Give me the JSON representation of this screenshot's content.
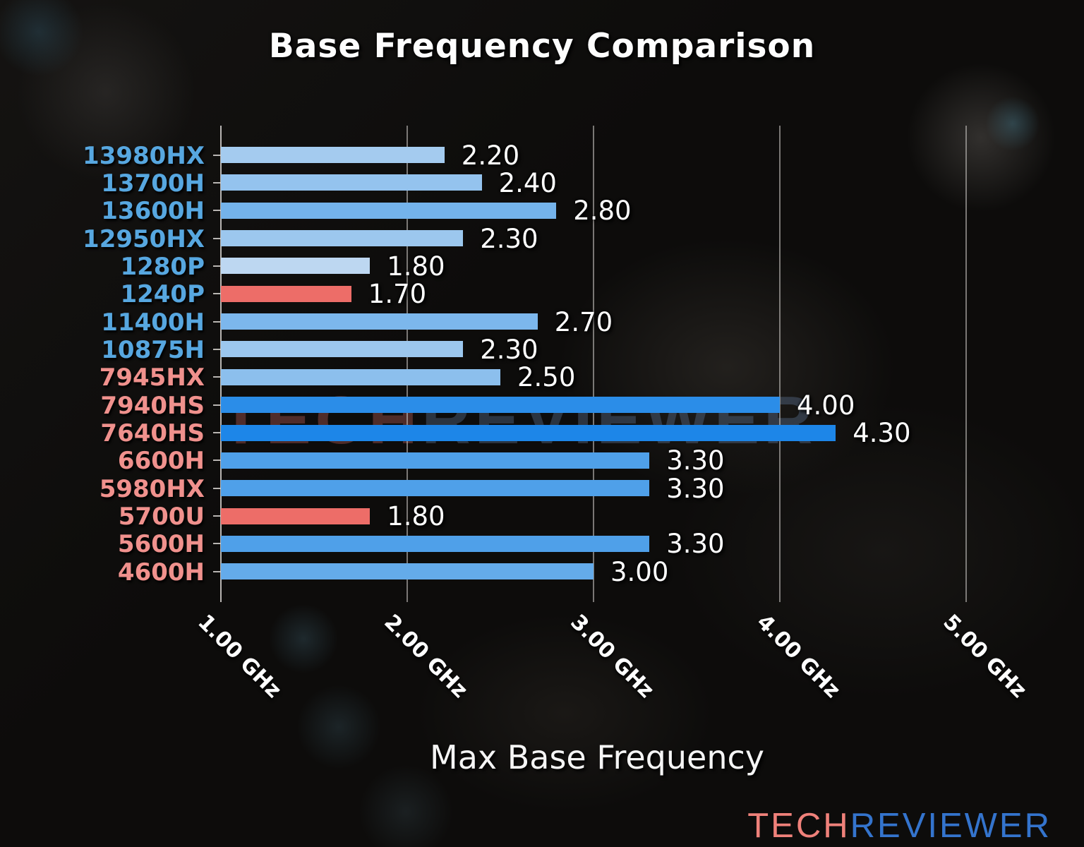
{
  "title": "Base Frequency Comparison",
  "watermark": {
    "tech": "TECH",
    "reviewer": "REVIEWER"
  },
  "logo": {
    "tech": "TECH",
    "reviewer": "REVIEWER"
  },
  "colors": {
    "background": "#0d0c0b",
    "title_text": "#fdfdfd",
    "value_label_text": "#ffffff",
    "tick_label_text": "#ffffff",
    "axis_label_text": "#f5f5f5",
    "grid_line": "rgba(195,192,188,0.60)",
    "axis_spine": "rgba(215,212,208,0.85)",
    "intel_label": "#57a7e0",
    "amd_label": "#f0918d",
    "highlight_bar": "#ed6d68",
    "logo_tech": "#ef817a",
    "logo_reviewer": "#3474cd",
    "watermark_tech": "rgba(180,92,88,0.40)",
    "watermark_reviewer": "rgba(108,138,178,0.32)"
  },
  "chart_data": {
    "type": "bar",
    "orientation": "horizontal",
    "title": "Base Frequency Comparison",
    "xlabel": "Max Base Frequency",
    "x_unit": "GHz",
    "xlim": [
      1.0,
      5.65
    ],
    "grid": "vertical gridlines at each labeled tick",
    "legend": "none",
    "x_ticks": [
      "1.00 GHz",
      "2.00 GHz",
      "3.00 GHz",
      "4.00 GHz",
      "5.00 GHz"
    ],
    "x_tick_values": [
      1.0,
      2.0,
      3.0,
      4.0,
      5.0
    ],
    "categories": [
      "13980HX",
      "13700H",
      "13600H",
      "12950HX",
      "1280P",
      "1240P",
      "11400H",
      "10875H",
      "7945HX",
      "7940HS",
      "7640HS",
      "6600H",
      "5980HX",
      "5700U",
      "5600H",
      "4600H"
    ],
    "values": [
      2.2,
      2.4,
      2.8,
      2.3,
      1.8,
      1.7,
      2.7,
      2.3,
      2.5,
      4.0,
      4.3,
      3.3,
      3.3,
      1.8,
      3.3,
      3.0
    ],
    "value_labels": [
      "2.20",
      "2.40",
      "2.80",
      "2.30",
      "1.80",
      "1.70",
      "2.70",
      "2.30",
      "2.50",
      "4.00",
      "4.30",
      "3.30",
      "3.30",
      "1.80",
      "3.30",
      "3.00"
    ],
    "bar_colors": [
      "#a4cbef",
      "#94c3ee",
      "#74b3eb",
      "#9cc7ee",
      "#bdd7f1",
      "#ed6d68",
      "#7cb7ec",
      "#9cc7ee",
      "#8cbfed",
      "#2b8de8",
      "#1d86e8",
      "#4fa0e9",
      "#4fa0e9",
      "#ed6d68",
      "#4fa0e9",
      "#64abea"
    ],
    "label_colors": [
      "#57a7e0",
      "#57a7e0",
      "#57a7e0",
      "#57a7e0",
      "#57a7e0",
      "#57a7e0",
      "#57a7e0",
      "#57a7e0",
      "#f0918d",
      "#f0918d",
      "#f0918d",
      "#f0918d",
      "#f0918d",
      "#f0918d",
      "#f0918d",
      "#f0918d"
    ],
    "highlighted_categories": [
      "1240P",
      "5700U"
    ]
  }
}
